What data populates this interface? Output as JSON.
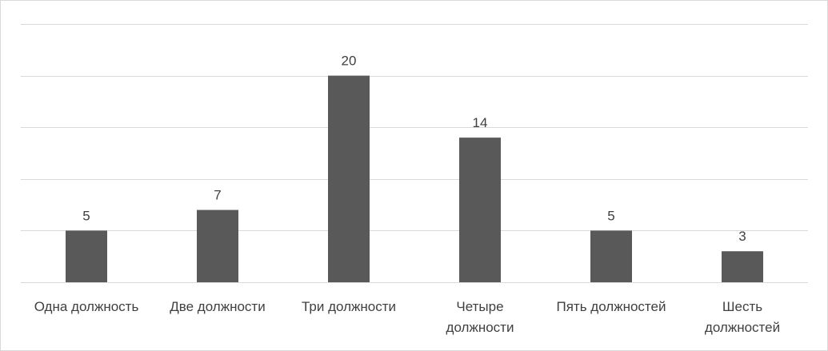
{
  "chart_data": {
    "type": "bar",
    "title": "",
    "xlabel": "",
    "ylabel": "",
    "categories": [
      "Одна должность",
      "Две должности",
      "Три должности",
      "Четыре должности",
      "Пять должностей",
      "Шесть должностей"
    ],
    "category_lines": [
      [
        "Одна должность"
      ],
      [
        "Две должности"
      ],
      [
        "Три должности"
      ],
      [
        "Четыре",
        "должности"
      ],
      [
        "Пять должностей"
      ],
      [
        "Шесть",
        "должностей"
      ]
    ],
    "values": [
      5,
      7,
      20,
      14,
      5,
      3
    ],
    "ylim": [
      0,
      25
    ],
    "grid": true,
    "legend": "none",
    "bar_color": "#595959",
    "grid_color": "#d9d9d9",
    "label_color": "#404040"
  }
}
